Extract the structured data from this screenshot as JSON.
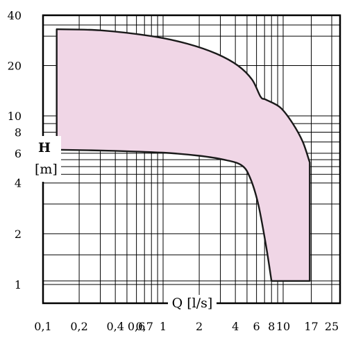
{
  "chart_data": {
    "type": "area",
    "title": "",
    "xlabel": "Q [l/s]",
    "ylabel_lines": [
      "H",
      "[m]"
    ],
    "x_scale": "log",
    "y_scale": "log",
    "xlim": [
      0.1,
      25
    ],
    "ylim": [
      0.8,
      40
    ],
    "x_tick_labels": [
      {
        "value": 0.1,
        "label": "0,1"
      },
      {
        "value": 0.2,
        "label": "0,2"
      },
      {
        "value": 0.4,
        "label": "0,4"
      },
      {
        "value": 0.6,
        "label": "0,6"
      },
      {
        "value": 0.7,
        "label": "0,7"
      },
      {
        "value": 1,
        "label": "1"
      },
      {
        "value": 2,
        "label": "2"
      },
      {
        "value": 4,
        "label": "4"
      },
      {
        "value": 6,
        "label": "6"
      },
      {
        "value": 8,
        "label": "8"
      },
      {
        "value": 10,
        "label": "10"
      },
      {
        "value": 17,
        "label": "17"
      },
      {
        "value": 25,
        "label": "25"
      }
    ],
    "y_tick_labels": [
      {
        "value": 40,
        "label": "40"
      },
      {
        "value": 20,
        "label": "20"
      },
      {
        "value": 10,
        "label": "10"
      },
      {
        "value": 8,
        "label": "8"
      },
      {
        "value": 6,
        "label": "6"
      },
      {
        "value": 4,
        "label": "4"
      },
      {
        "value": 2,
        "label": "2"
      },
      {
        "value": 1,
        "label": "1"
      }
    ],
    "x_gridlines": [
      0.1,
      0.2,
      0.3,
      0.4,
      0.5,
      0.6,
      0.7,
      0.8,
      0.9,
      1,
      2,
      3,
      4,
      5,
      6,
      7,
      8,
      9,
      10,
      17,
      25
    ],
    "y_gridlines": [
      1,
      1.05,
      1.5,
      2,
      3,
      4,
      4.5,
      5,
      5.5,
      6,
      7,
      8,
      9,
      10,
      20,
      30,
      35,
      40
    ],
    "grid": true,
    "series": [
      {
        "upper_curve": [
          {
            "x": 0.13,
            "y": 33
          },
          {
            "x": 0.3,
            "y": 32.5
          },
          {
            "x": 0.8,
            "y": 30
          },
          {
            "x": 1.6,
            "y": 27
          },
          {
            "x": 2.8,
            "y": 23.5
          },
          {
            "x": 4.2,
            "y": 20
          },
          {
            "x": 5.5,
            "y": 16.5
          },
          {
            "x": 6.5,
            "y": 13
          },
          {
            "x": 7.2,
            "y": 12.5
          },
          {
            "x": 9.5,
            "y": 11.2
          },
          {
            "x": 12,
            "y": 9
          },
          {
            "x": 14.5,
            "y": 7
          },
          {
            "x": 16.5,
            "y": 5.3
          }
        ],
        "lower_curve": [
          {
            "x": 0.13,
            "y": 6.3
          },
          {
            "x": 0.4,
            "y": 6.2
          },
          {
            "x": 1,
            "y": 6.05
          },
          {
            "x": 2,
            "y": 5.8
          },
          {
            "x": 3.2,
            "y": 5.5
          },
          {
            "x": 4.5,
            "y": 5.1
          },
          {
            "x": 5.3,
            "y": 4.3
          },
          {
            "x": 6.2,
            "y": 3
          },
          {
            "x": 7.2,
            "y": 1.7
          },
          {
            "x": 8,
            "y": 1.05
          }
        ],
        "right_edge": {
          "x": 16.5,
          "y_from": 1.05,
          "y_to": 5.3
        },
        "left_edge": {
          "x": 0.13,
          "y_from": 6.3,
          "y_to": 33
        }
      }
    ],
    "colors": {
      "fill": "#f0d6e6",
      "stroke": "#1a1a1a",
      "grid": "#000000",
      "axis_label_bg": "#ffffff"
    }
  }
}
